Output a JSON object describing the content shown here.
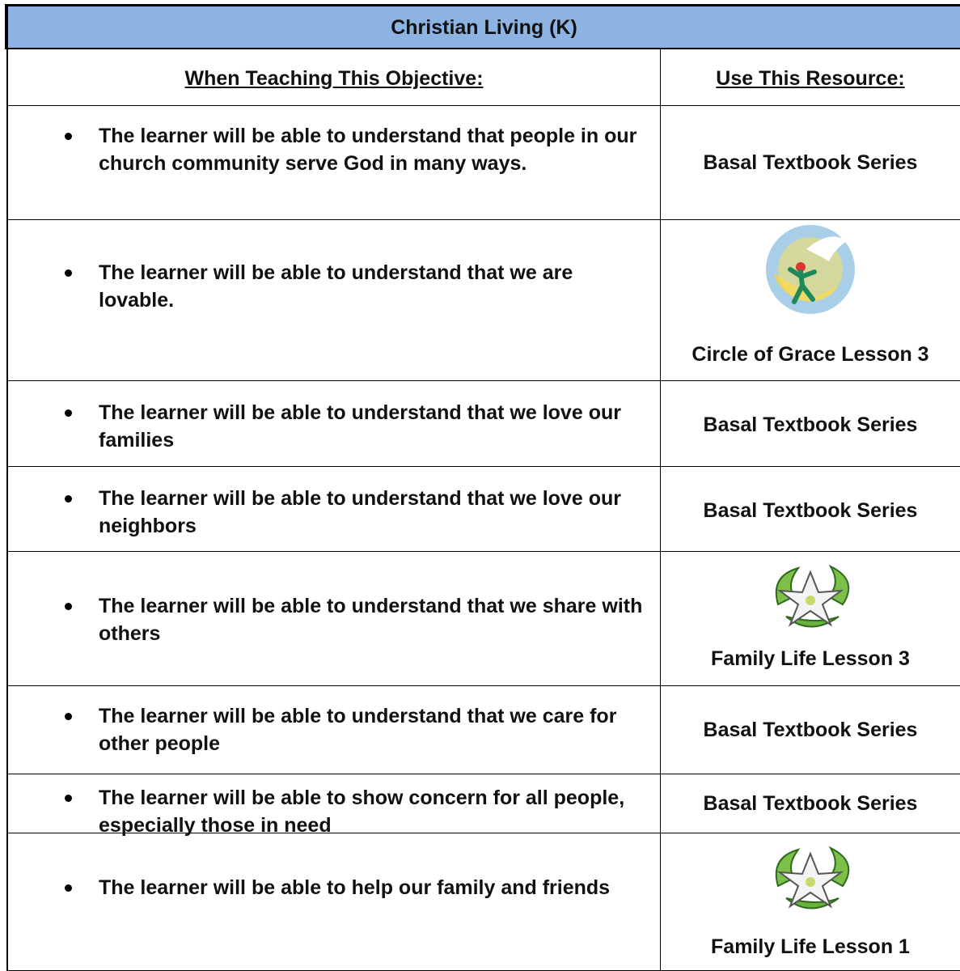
{
  "header": {
    "title": "Christian Living (K)"
  },
  "table": {
    "columns": [
      "When Teaching This Objective:",
      "Use This Resource:"
    ],
    "rows": [
      [
        "The learner will be able to understand that people in our church community serve God in many ways.",
        "Basal Textbook Series"
      ],
      [
        "The learner will be able to understand that we are lovable.",
        "Circle of Grace Lesson 3"
      ],
      [
        "The learner will be able to understand that we love our families",
        "Basal Textbook Series"
      ],
      [
        "The learner will be able to understand that we love our neighbors",
        "Basal Textbook Series"
      ],
      [
        "The learner will be able to understand that we share with others",
        "Family Life Lesson 3"
      ],
      [
        "The learner will be able to understand that we care for other people",
        "Basal Textbook Series"
      ],
      [
        "The learner will be able to show concern for all people, especially those in need",
        "Basal Textbook Series"
      ],
      [
        "The learner will be able to help our family and friends",
        "Family Life Lesson 1"
      ]
    ]
  }
}
